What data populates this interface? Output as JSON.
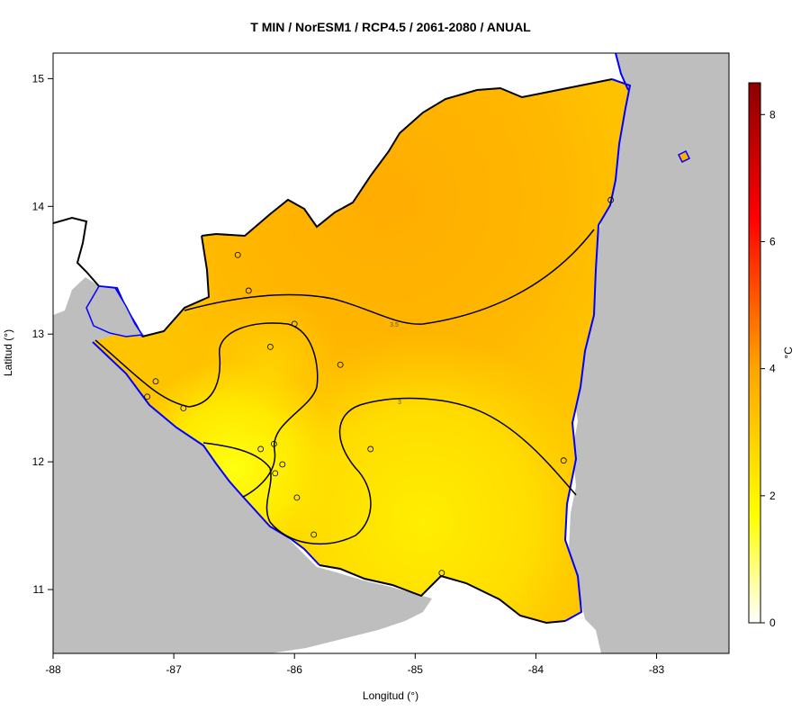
{
  "title": "T MIN / NorESM1 / RCP4.5 / 2061-2080 / ANUAL",
  "x_axis": {
    "label": "Longitud (°)",
    "ticks": [
      "-88",
      "-87",
      "-86",
      "-85",
      "-84",
      "-83"
    ]
  },
  "y_axis": {
    "label": "Latitud (°)",
    "ticks": [
      "15",
      "14",
      "13",
      "12",
      "11"
    ]
  },
  "colorbar": {
    "unit": "°C",
    "ticks": [
      "8",
      "6",
      "4",
      "2",
      "0"
    ],
    "range": [
      0,
      8.5
    ],
    "colors": [
      "#ffffff",
      "#ffff00",
      "#ffa500",
      "#ff0000",
      "#8b0000"
    ]
  },
  "contours": [
    {
      "value": "3.5"
    },
    {
      "value": "3"
    }
  ],
  "colors": {
    "land": "#ffb000",
    "sea": "#bebebe",
    "coast": "#0000ff",
    "border": "#000000"
  },
  "chart_data": {
    "type": "heatmap",
    "title": "T MIN / NorESM1 / RCP4.5 / 2061-2080 / ANUAL",
    "xlabel": "Longitud (°)",
    "ylabel": "Latitud (°)",
    "xlim": [
      -88,
      -82.4
    ],
    "ylim": [
      10.5,
      15.2
    ],
    "colorbar": {
      "label": "°C",
      "range": [
        0,
        8.5
      ]
    },
    "contour_levels": [
      3,
      3.5
    ],
    "stations": [
      {
        "lon": -86.47,
        "lat": 13.62
      },
      {
        "lon": -86.38,
        "lat": 13.34
      },
      {
        "lon": -86.0,
        "lat": 13.08
      },
      {
        "lon": -86.2,
        "lat": 12.9
      },
      {
        "lon": -85.62,
        "lat": 12.76
      },
      {
        "lon": -87.15,
        "lat": 12.63
      },
      {
        "lon": -87.22,
        "lat": 12.51
      },
      {
        "lon": -86.92,
        "lat": 12.42
      },
      {
        "lon": -86.17,
        "lat": 12.14
      },
      {
        "lon": -86.28,
        "lat": 12.1
      },
      {
        "lon": -85.37,
        "lat": 12.1
      },
      {
        "lon": -86.1,
        "lat": 11.98
      },
      {
        "lon": -86.16,
        "lat": 11.91
      },
      {
        "lon": -85.98,
        "lat": 11.72
      },
      {
        "lon": -85.84,
        "lat": 11.43
      },
      {
        "lon": -84.78,
        "lat": 11.13
      },
      {
        "lon": -83.77,
        "lat": 12.01
      },
      {
        "lon": -83.38,
        "lat": 14.05
      }
    ]
  }
}
